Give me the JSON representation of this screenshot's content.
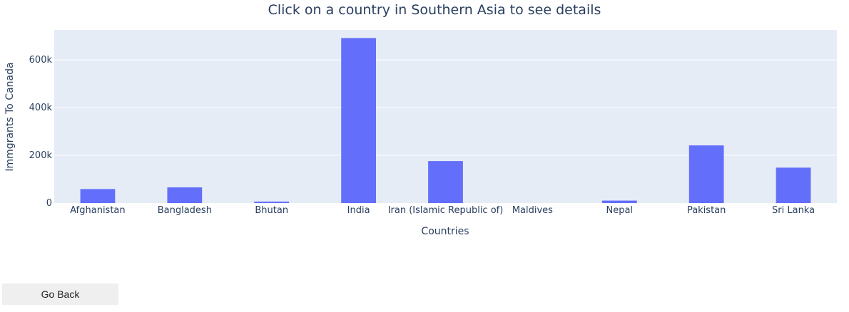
{
  "chart_data": {
    "type": "bar",
    "title": "Click on a country in Southern Asia to see details",
    "xlabel": "Countries",
    "ylabel": "Immgrants To Canada",
    "categories": [
      "Afghanistan",
      "Bangladesh",
      "Bhutan",
      "India",
      "Iran (Islamic Republic of)",
      "Maldives",
      "Nepal",
      "Pakistan",
      "Sri Lanka"
    ],
    "values": [
      58639,
      65568,
      5876,
      691904,
      175923,
      1,
      10222,
      241600,
      148358
    ],
    "ylim": [
      0,
      726000
    ],
    "yticks": [
      0,
      200000,
      400000,
      600000
    ],
    "ytick_labels": [
      "0",
      "200k",
      "400k",
      "600k"
    ],
    "grid": true,
    "colors": {
      "bar": "#636efa",
      "plot_bg": "#e5ecf6",
      "grid": "#ffffff",
      "text": "#2a3f5f"
    }
  },
  "controls": {
    "go_back_label": "Go Back"
  }
}
